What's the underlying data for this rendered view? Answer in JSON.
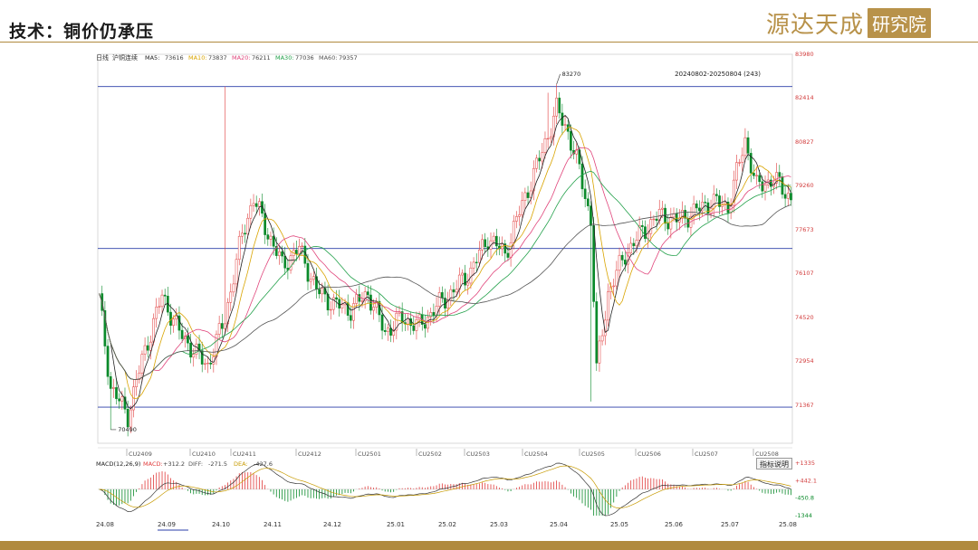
{
  "page": {
    "title": "技术：铜价仍承压"
  },
  "logo": {
    "text_a": "源达天成",
    "text_b": "研究院"
  },
  "colors": {
    "up": "#e03b3b",
    "down": "#0a8a2a",
    "hline": "#2a3ea8",
    "ma5": "#222222",
    "ma10": "#d9a400",
    "ma20": "#e0457b",
    "ma30": "#22a04a",
    "ma60": "#555555",
    "gold": "#b08a3e"
  },
  "chart_data": [
    {
      "type": "candlestick",
      "header": {
        "period": "日线",
        "symbol": "沪铜连续",
        "ma": [
          {
            "name": "MA5",
            "value": "73616"
          },
          {
            "name": "MA10",
            "value": "73837"
          },
          {
            "name": "MA20",
            "value": "76211"
          },
          {
            "name": "MA30",
            "value": "77036"
          },
          {
            "name": "MA60",
            "value": "79357"
          }
        ]
      },
      "range_label": "20240802-20250804 (243)",
      "ylim": [
        70000,
        83980
      ],
      "y_ticks": [
        "83980",
        "82414",
        "80827",
        "79260",
        "77673",
        "76107",
        "74520",
        "72954",
        "71367"
      ],
      "hlines": [
        82820,
        77000,
        71300
      ],
      "annotations": [
        {
          "text": "83270",
          "x": "2025-03-26"
        },
        {
          "text": "70490",
          "x": "2024-08-07"
        }
      ],
      "contracts": [
        "CU2409",
        "CU2410",
        "CU2411",
        "CU2412",
        "CU2501",
        "CU2502",
        "CU2503",
        "CU2504",
        "CU2505",
        "CU2506",
        "CU2507",
        "CU2508"
      ],
      "series": [
        {
          "name": "MA5"
        },
        {
          "name": "MA10"
        },
        {
          "name": "MA20"
        },
        {
          "name": "MA30"
        },
        {
          "name": "MA60"
        }
      ]
    },
    {
      "type": "bar",
      "header": {
        "name": "MACD(12,26,9)",
        "items": [
          {
            "name": "MACD",
            "value": "+312.2"
          },
          {
            "name": "DIFF",
            "value": "-271.5"
          },
          {
            "name": "DEA",
            "value": "-427.6"
          }
        ]
      },
      "y_ticks": [
        "+1335",
        "+442.1",
        "-450.8",
        "-1344"
      ],
      "button": "指标说明",
      "x_ticks": [
        "24.08",
        "24.09",
        "24.10",
        "24.11",
        "24.12",
        "25.01",
        "25.02",
        "25.03",
        "25.04",
        "25.05",
        "25.06",
        "25.07",
        "25.08"
      ]
    }
  ]
}
